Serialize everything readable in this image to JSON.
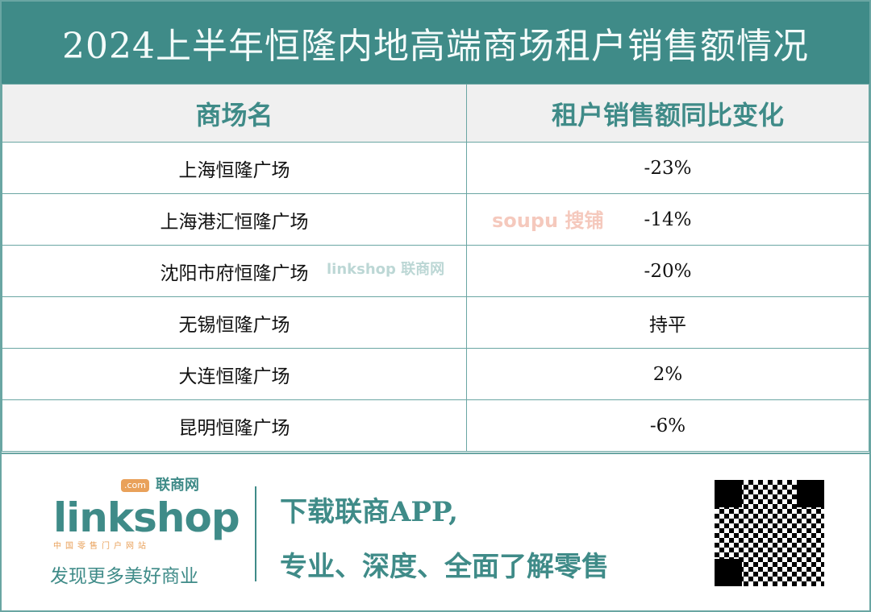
{
  "title": "2024上半年恒隆内地高端商场租户销售额情况",
  "table": {
    "headers": [
      "商场名",
      "租户销售额同比变化"
    ],
    "rows": [
      [
        "上海恒隆广场",
        "-23%"
      ],
      [
        "上海港汇恒隆广场",
        "-14%"
      ],
      [
        "沈阳市府恒隆广场",
        "-20%"
      ],
      [
        "无锡恒隆广场",
        "持平"
      ],
      [
        "大连恒隆广场",
        "2%"
      ],
      [
        "昆明恒隆广场",
        "-6%"
      ]
    ]
  },
  "watermarks": [
    "linkshop 联商网",
    "soupu 搜铺"
  ],
  "footer": {
    "logo_brand": "linkshop",
    "logo_cn": "联商网",
    "logo_com": ".com",
    "logo_sub": "中国零售门户网站",
    "slogan": "发现更多美好商业",
    "promo_line1": "下载联商APP,",
    "promo_line2": "专业、深度、全面了解零售"
  },
  "colors": {
    "accent": "#3f8b88",
    "header_bg": "#f0f0f0",
    "logo_orange": "#e9a15a"
  }
}
